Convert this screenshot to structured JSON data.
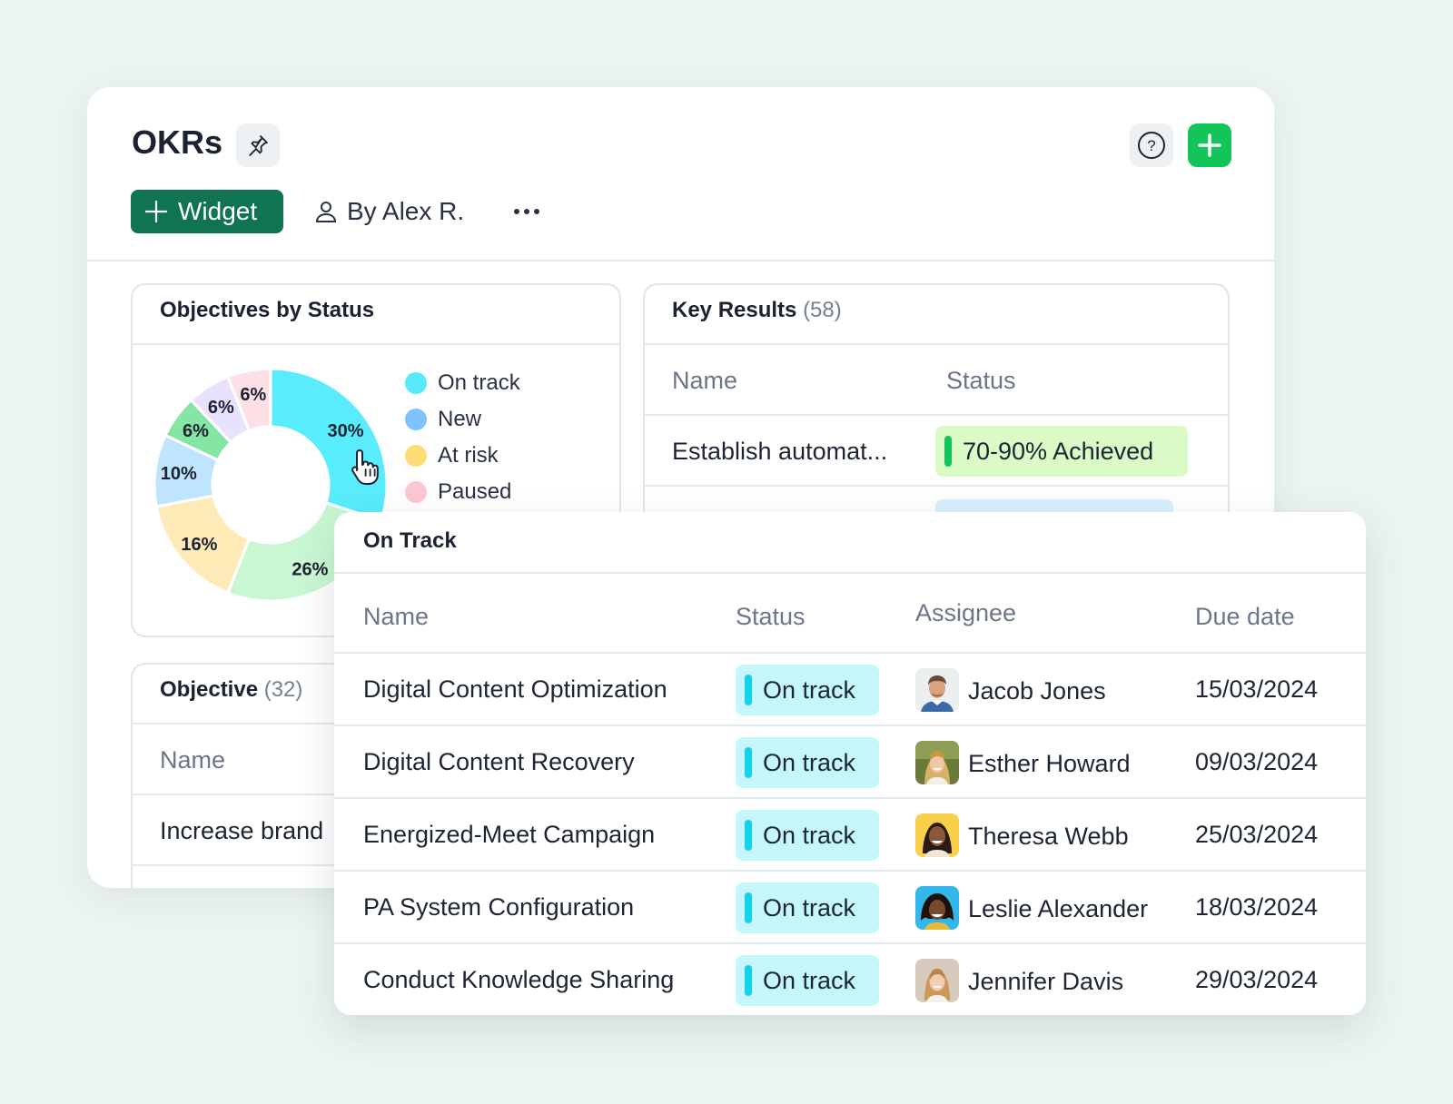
{
  "header": {
    "title": "OKRs",
    "widget_button": "Widget",
    "owner": "By Alex R."
  },
  "objectives_by_status": {
    "title": "Objectives by Status",
    "legend": [
      "On track",
      "New",
      "At risk",
      "Paused"
    ]
  },
  "chart_data": {
    "type": "pie",
    "title": "Objectives by Status",
    "slices": [
      {
        "label": "30%",
        "value": 30,
        "color": "#59ecfd"
      },
      {
        "label": "26%",
        "value": 26,
        "color": "#c9f7d2"
      },
      {
        "label": "16%",
        "value": 16,
        "color": "#feeab6"
      },
      {
        "label": "10%",
        "value": 10,
        "color": "#bfe4fd"
      },
      {
        "label": "6%",
        "value": 6,
        "color": "#85e5a2"
      },
      {
        "label": "6%",
        "value": 6,
        "color": "#e8e2fd"
      },
      {
        "label": "6%",
        "value": 6,
        "color": "#fde0e6"
      }
    ],
    "legend": [
      {
        "name": "On track",
        "color": "#5ae8fb"
      },
      {
        "name": "New",
        "color": "#7ec3fb"
      },
      {
        "name": "At risk",
        "color": "#fedb74"
      },
      {
        "name": "Paused",
        "color": "#fdc7d1"
      }
    ]
  },
  "key_results": {
    "title": "Key Results",
    "count": "(58)",
    "columns": [
      "Name",
      "Status"
    ],
    "rows": [
      {
        "name": "Establish automat...",
        "status": "70-90% Achieved"
      }
    ]
  },
  "objective": {
    "title": "Objective",
    "count": "(32)",
    "columns": [
      "Name"
    ],
    "rows": [
      {
        "name": "Increase brand"
      }
    ]
  },
  "on_track": {
    "title": "On Track",
    "columns": [
      "Name",
      "Status",
      "Assignee",
      "Due date"
    ],
    "rows": [
      {
        "name": "Digital Content Optimization",
        "status": "On track",
        "assignee": "Jacob Jones",
        "due": "15/03/2024"
      },
      {
        "name": "Digital Content Recovery",
        "status": "On track",
        "assignee": "Esther Howard",
        "due": "09/03/2024"
      },
      {
        "name": "Energized-Meet Campaign",
        "status": "On track",
        "assignee": "Theresa Webb",
        "due": "25/03/2024"
      },
      {
        "name": "PA System Configuration",
        "status": "On track",
        "assignee": "Leslie Alexander",
        "due": "18/03/2024"
      },
      {
        "name": "Conduct Knowledge Sharing",
        "status": "On track",
        "assignee": "Jennifer Davis",
        "due": "29/03/2024"
      }
    ]
  },
  "colors": {
    "brand": "#0f7354",
    "add": "#12c45a",
    "on_track_pill": "#c5f6fb",
    "achieved_pill": "#dafbc6"
  },
  "icons": [
    "pin-icon",
    "help-icon",
    "plus-icon",
    "user-icon",
    "more-icon",
    "hand-cursor-icon"
  ]
}
